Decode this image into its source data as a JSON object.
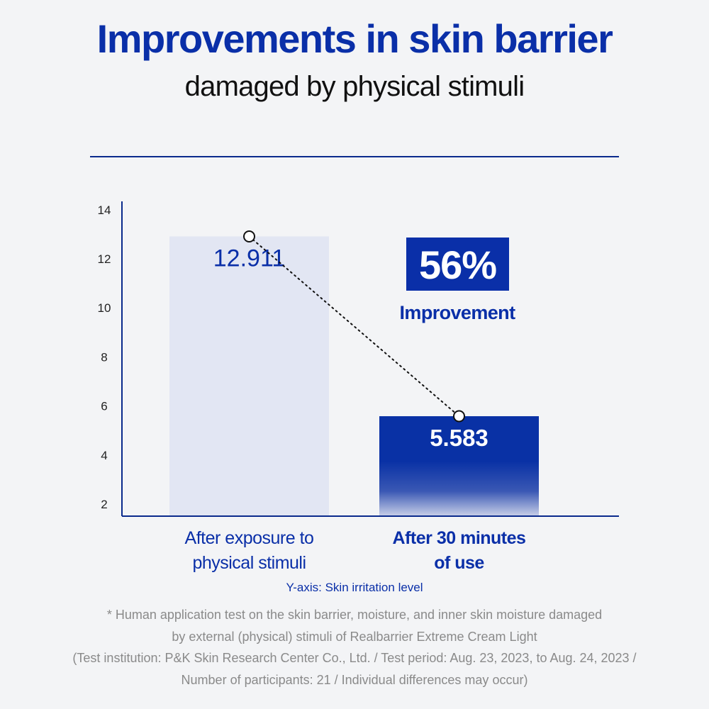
{
  "header": {
    "title": "Improvements in skin barrier",
    "subtitle": "damaged by physical stimuli"
  },
  "callout": {
    "percent": "56%",
    "label": "Improvement"
  },
  "colors": {
    "brand_blue": "#0a2fa8",
    "bar_light": "#e2e6f3",
    "bar_dark": "#0931a5",
    "axis": "#0a2a8c"
  },
  "chart_data": {
    "type": "bar",
    "categories": [
      [
        "After exposure to",
        "physical stimuli"
      ],
      [
        "After 30 minutes",
        "of use"
      ]
    ],
    "values": [
      12.911,
      5.583
    ],
    "value_labels": [
      "12.911",
      "5.583"
    ],
    "yticks": [
      "14",
      "12",
      "10",
      "8",
      "6",
      "4",
      "2"
    ],
    "ylim": [
      1.5,
      14
    ],
    "ylabel": "Y-axis: Skin irritation level",
    "connector": "dotted line with circle markers on bar tops",
    "grid": false,
    "legend": "none"
  },
  "footnote": {
    "lines": [
      "* Human application test on the skin barrier, moisture, and inner skin moisture damaged",
      "by external (physical) stimuli of Realbarrier Extreme Cream Light",
      "(Test institution: P&K Skin Research Center Co., Ltd. / Test period: Aug. 23, 2023, to Aug. 24, 2023 /",
      "Number of participants: 21 / Individual differences may occur)"
    ]
  }
}
